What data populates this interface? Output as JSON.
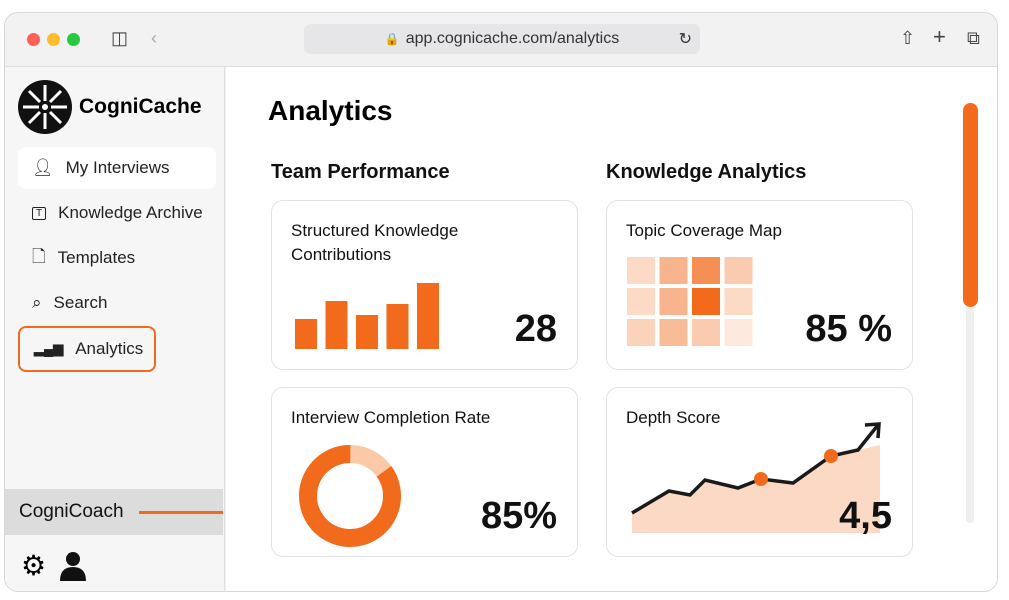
{
  "browser": {
    "url": "app.cognicache.com/analytics"
  },
  "sidebar": {
    "brand": "CogniCache",
    "items": [
      {
        "label": "My Interviews",
        "icon": "user-icon"
      },
      {
        "label": "Knowledge Archive",
        "icon": "text-box-icon"
      },
      {
        "label": "Templates",
        "icon": "document-icon"
      },
      {
        "label": "Search",
        "icon": "search-icon"
      },
      {
        "label": "Analytics",
        "icon": "bar-chart-icon",
        "active": true
      }
    ],
    "coach": "CogniCoach"
  },
  "main": {
    "title": "Analytics",
    "team": {
      "heading": "Team Performance",
      "contrib": {
        "title": "Structured Knowledge Contributions",
        "value": "28"
      },
      "completion": {
        "title": "Interview Completion Rate",
        "value": "85%",
        "percent": 85
      }
    },
    "knowledge": {
      "heading": "Knowledge Analytics",
      "coverage": {
        "title": "Topic Coverage Map",
        "value": "85 %"
      },
      "depth": {
        "title": "Depth Score",
        "value": "4,5"
      }
    }
  },
  "colors": {
    "accent": "#f26a1b",
    "light": "#fbd7c0"
  }
}
